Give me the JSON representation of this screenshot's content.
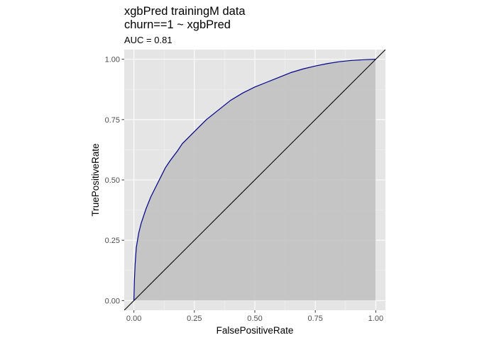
{
  "chart_data": {
    "type": "line",
    "title_lines": [
      "xgbPred trainingM data",
      "churn==1 ~ xgbPred"
    ],
    "subtitle": "AUC = 0.81",
    "xlabel": "FalsePositiveRate",
    "ylabel": "TruePositiveRate",
    "xlim": [
      -0.04,
      1.04
    ],
    "ylim": [
      -0.04,
      1.04
    ],
    "x_ticks": [
      0,
      0.25,
      0.5,
      0.75,
      1
    ],
    "x_tick_labels": [
      "0.00",
      "0.25",
      "0.50",
      "0.75",
      "1.00"
    ],
    "y_ticks": [
      0,
      0.25,
      0.5,
      0.75,
      1
    ],
    "y_tick_labels": [
      "0.00",
      "0.25",
      "0.50",
      "0.75",
      "1.00"
    ],
    "grid": true,
    "series": [
      {
        "role": "roc-curve",
        "color": "#00008b",
        "fill": "#bfbfbf",
        "x": [
          0,
          0.002,
          0.005,
          0.01,
          0.02,
          0.03,
          0.05,
          0.07,
          0.1,
          0.13,
          0.15,
          0.18,
          0.2,
          0.23,
          0.25,
          0.3,
          0.35,
          0.4,
          0.45,
          0.5,
          0.55,
          0.6,
          0.65,
          0.7,
          0.75,
          0.8,
          0.85,
          0.9,
          0.95,
          1
        ],
        "y": [
          0,
          0.08,
          0.15,
          0.22,
          0.28,
          0.32,
          0.38,
          0.43,
          0.49,
          0.55,
          0.58,
          0.62,
          0.65,
          0.68,
          0.7,
          0.75,
          0.79,
          0.83,
          0.86,
          0.885,
          0.905,
          0.925,
          0.945,
          0.96,
          0.972,
          0.982,
          0.99,
          0.995,
          0.998,
          1
        ]
      },
      {
        "role": "diagonal-reference",
        "color": "#000000",
        "x": [
          -0.04,
          1.04
        ],
        "y": [
          -0.04,
          1.04
        ]
      }
    ]
  }
}
